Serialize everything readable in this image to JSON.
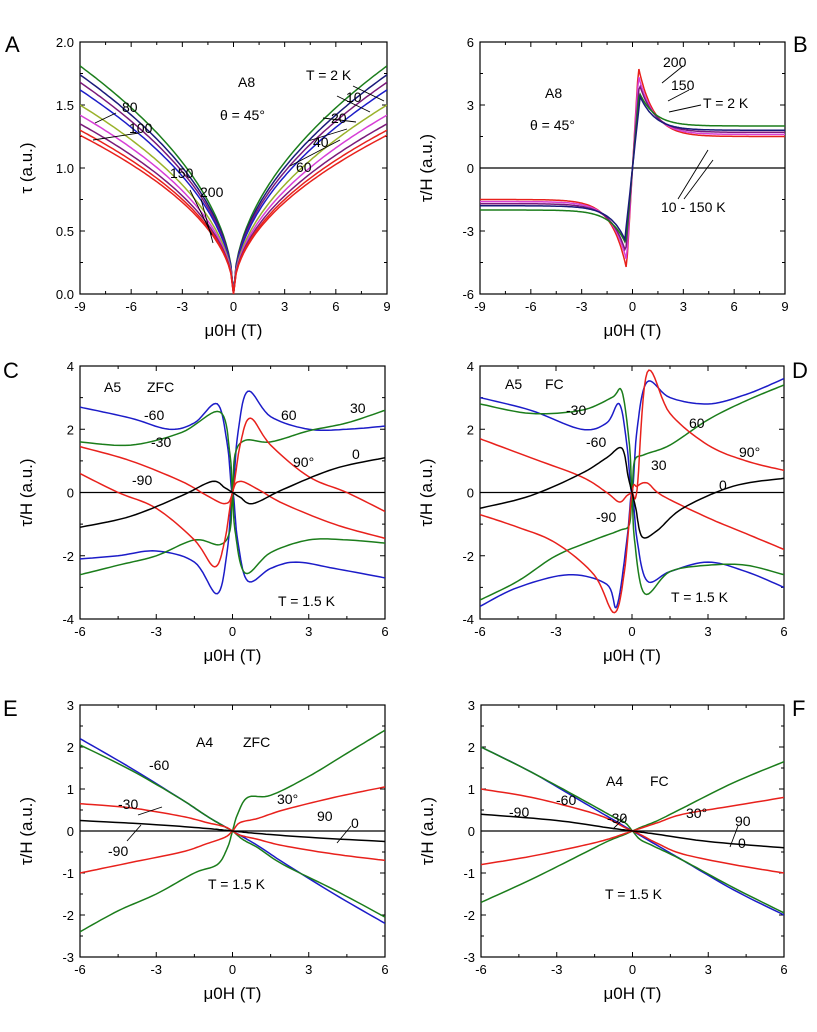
{
  "colors": {
    "black": "#000000",
    "red": "#e8211c",
    "green": "#1b7d1b",
    "blue": "#1c1cc8",
    "navy": "#1a1a7a",
    "purple": "#7b1a7a",
    "magenta": "#d73fd7",
    "olive": "#9ab22a"
  },
  "chart_data": [
    {
      "panel": "A",
      "type": "line",
      "xlabel": "μ0H (T)",
      "ylabel": "τ (a.u.)",
      "xlim": [
        -9,
        9
      ],
      "ylim": [
        0,
        2.0
      ],
      "xticks": [
        "-9",
        "-6",
        "-3",
        "0",
        "3",
        "6",
        "9"
      ],
      "yticks": [
        "0.0",
        "0.5",
        "1.0",
        "1.5",
        "2.0"
      ],
      "zero_line": false,
      "annotations": [
        "A8",
        "θ = 45°",
        "T = 2 K",
        "10",
        "20",
        "40",
        "60",
        "80",
        "100",
        "150",
        "200"
      ],
      "series": [
        {
          "label": "2 K",
          "color": "#1b7d1b",
          "fn": "sqrt",
          "amp": 1.81
        },
        {
          "label": "10 K",
          "color": "#1a1a7a",
          "fn": "sqrt",
          "amp": 1.74
        },
        {
          "label": "20 K",
          "color": "#7b1a7a",
          "fn": "sqrt",
          "amp": 1.68
        },
        {
          "label": "40 K",
          "color": "#1c1cc8",
          "fn": "sqrt",
          "amp": 1.62
        },
        {
          "label": "60 K",
          "color": "#9ab22a",
          "fn": "sqrt",
          "amp": 1.5
        },
        {
          "label": "80 K",
          "color": "#d73fd7",
          "fn": "sqrt",
          "amp": 1.42
        },
        {
          "label": "100 K",
          "color": "#7b1a7a",
          "fn": "sqrt",
          "amp": 1.35
        },
        {
          "label": "150 K",
          "color": "#e8211c",
          "fn": "sqrt",
          "amp": 1.3
        },
        {
          "label": "200 K",
          "color": "#e8211c",
          "fn": "sqrt",
          "amp": 1.26
        }
      ]
    },
    {
      "panel": "B",
      "type": "line",
      "xlabel": "μ0H (T)",
      "ylabel": "τ/H (a.u.)",
      "xlim": [
        -9,
        9
      ],
      "ylim": [
        -6,
        6
      ],
      "xticks": [
        "-9",
        "-6",
        "-3",
        "0",
        "3",
        "6",
        "9"
      ],
      "yticks": [
        "-6",
        "-3",
        "0",
        "3",
        "6"
      ],
      "zero_line": true,
      "annotations": [
        "A8",
        "θ = 45°",
        "200",
        "150",
        "T = 2 K",
        "10 - 150 K"
      ],
      "series": [
        {
          "label": "200 K",
          "color": "#e8211c",
          "fn": "peak",
          "peak": 4.8,
          "hpk": 0.35,
          "tail": 1.5
        },
        {
          "label": "150 K",
          "color": "#d73fd7",
          "fn": "peak",
          "peak": 4.4,
          "hpk": 0.35,
          "tail": 1.6
        },
        {
          "label": "100 K",
          "color": "#7b1a7a",
          "fn": "peak",
          "peak": 4.0,
          "hpk": 0.4,
          "tail": 1.7
        },
        {
          "label": "10 K",
          "color": "#1b7d1b",
          "fn": "peak",
          "peak": 3.6,
          "hpk": 0.4,
          "tail": 2.0
        },
        {
          "label": "2 K",
          "color": "#1a1a7a",
          "fn": "peak",
          "peak": 3.4,
          "hpk": 0.45,
          "tail": 1.8
        }
      ]
    },
    {
      "panel": "C",
      "type": "line",
      "xlabel": "μ0H (T)",
      "ylabel": "τ/H (a.u.)",
      "xlim": [
        -6,
        6
      ],
      "ylim": [
        -4,
        4
      ],
      "xticks": [
        "-6",
        "-3",
        "0",
        "3",
        "6"
      ],
      "yticks": [
        "-4",
        "-2",
        "0",
        "2",
        "4"
      ],
      "zero_line": true,
      "annotations": [
        "A5",
        "ZFC",
        "-60",
        "60",
        "30",
        "-30",
        "-90",
        "90°",
        "0",
        "T = 1.5 K"
      ],
      "series": [
        {
          "label": "60",
          "color": "#1c1cc8",
          "x": [
            -6,
            -4,
            -2.5,
            -1.5,
            -0.6,
            -0.2,
            0,
            0.2,
            0.6,
            1.5,
            3,
            4.5,
            6
          ],
          "y": [
            2.7,
            2.35,
            2.0,
            2.2,
            2.8,
            1.5,
            0,
            1.8,
            3.2,
            2.4,
            2.0,
            2.0,
            2.1
          ]
        },
        {
          "label": "-60",
          "color": "#1c1cc8",
          "x": [
            -6,
            -4.5,
            -3,
            -1.5,
            -0.6,
            -0.2,
            0,
            0.2,
            0.6,
            1.5,
            2.5,
            4,
            6
          ],
          "y": [
            -2.1,
            -2.0,
            -1.85,
            -2.2,
            -3.2,
            -1.8,
            0,
            -1.5,
            -2.8,
            -2.4,
            -2.2,
            -2.4,
            -2.7
          ]
        },
        {
          "label": "30",
          "color": "#1b7d1b",
          "x": [
            -6,
            -4,
            -2,
            -0.5,
            -0.1,
            0,
            0.1,
            0.5,
            1.5,
            3,
            4.5,
            6
          ],
          "y": [
            1.6,
            1.5,
            1.9,
            2.55,
            1.2,
            0,
            1.2,
            1.65,
            1.6,
            1.95,
            2.2,
            2.6
          ]
        },
        {
          "label": "-30",
          "color": "#1b7d1b",
          "x": [
            -6,
            -4.5,
            -3,
            -1.5,
            -0.5,
            -0.1,
            0,
            0.1,
            0.5,
            1.5,
            3,
            4.5,
            6
          ],
          "y": [
            -2.6,
            -2.3,
            -2.0,
            -1.5,
            -1.65,
            -1.2,
            0,
            -1.2,
            -2.55,
            -1.9,
            -1.5,
            -1.5,
            -1.6
          ]
        },
        {
          "label": "90",
          "color": "#e8211c",
          "x": [
            -6,
            -4,
            -2,
            -1,
            -0.3,
            0,
            0.3,
            0.7,
            1.5,
            3,
            4.5,
            6
          ],
          "y": [
            1.45,
            1.0,
            0.35,
            -0.1,
            -0.35,
            0,
            1.5,
            2.35,
            1.5,
            0.5,
            0.0,
            -0.6
          ]
        },
        {
          "label": "-90",
          "color": "#e8211c",
          "x": [
            -6,
            -4.5,
            -3,
            -1.5,
            -0.7,
            -0.3,
            0,
            0.3,
            1,
            2,
            4,
            6
          ],
          "y": [
            0.6,
            0.0,
            -0.5,
            -1.5,
            -2.35,
            -1.5,
            0,
            0.35,
            0.1,
            -0.35,
            -1.0,
            -1.45
          ]
        },
        {
          "label": "0",
          "color": "#000000",
          "x": [
            -6,
            -4,
            -2,
            -0.8,
            -0.3,
            0,
            0.3,
            0.8,
            2,
            4,
            6
          ],
          "y": [
            -1.1,
            -0.75,
            -0.1,
            0.35,
            0.15,
            0,
            -0.15,
            -0.35,
            0.1,
            0.75,
            1.1
          ]
        }
      ]
    },
    {
      "panel": "D",
      "type": "line",
      "xlabel": "μ0H (T)",
      "ylabel": "τ/H (a.u.)",
      "xlim": [
        -6,
        6
      ],
      "ylim": [
        -4,
        4
      ],
      "xticks": [
        "-6",
        "-3",
        "0",
        "3",
        "6"
      ],
      "yticks": [
        "-4",
        "-2",
        "0",
        "2",
        "4"
      ],
      "zero_line": true,
      "annotations": [
        "A5",
        "FC",
        "-30",
        "-60",
        "60",
        "30",
        "90°",
        "0",
        "-90",
        "T = 1.5 K"
      ],
      "series": [
        {
          "label": "60",
          "color": "#1c1cc8",
          "x": [
            -6,
            -4,
            -2,
            -1,
            -0.5,
            -0.2,
            0,
            0.2,
            0.6,
            1.5,
            3,
            4.5,
            6
          ],
          "y": [
            3.0,
            2.6,
            2.0,
            2.2,
            2.8,
            1.5,
            0,
            2.0,
            3.5,
            3.0,
            2.8,
            3.1,
            3.6
          ]
        },
        {
          "label": "-60",
          "color": "#1c1cc8",
          "x": [
            -6,
            -4.5,
            -2.5,
            -1,
            -0.6,
            -0.2,
            0,
            0.2,
            0.6,
            1.5,
            3,
            4.5,
            6
          ],
          "y": [
            -3.6,
            -3.0,
            -2.6,
            -2.9,
            -3.6,
            -1.5,
            0,
            -1.5,
            -2.8,
            -2.5,
            -2.2,
            -2.5,
            -3.0
          ]
        },
        {
          "label": "30",
          "color": "#1b7d1b",
          "x": [
            -6,
            -4,
            -2,
            -0.8,
            -0.4,
            -0.1,
            0,
            0.1,
            0.5,
            1.5,
            3,
            4.5,
            6
          ],
          "y": [
            2.8,
            2.5,
            2.6,
            3.0,
            3.2,
            1.5,
            0,
            1.0,
            1.2,
            1.5,
            2.3,
            2.9,
            3.4
          ]
        },
        {
          "label": "-30",
          "color": "#1b7d1b",
          "x": [
            -6,
            -4.5,
            -3,
            -1.5,
            -0.5,
            -0.1,
            0,
            0.1,
            0.5,
            1.5,
            3,
            4.5,
            6
          ],
          "y": [
            -3.4,
            -2.8,
            -2.0,
            -1.5,
            -1.2,
            -1.0,
            0,
            -1.5,
            -3.2,
            -2.5,
            -2.3,
            -2.3,
            -2.6
          ]
        },
        {
          "label": "90",
          "color": "#e8211c",
          "x": [
            -6,
            -4,
            -2,
            -1,
            -0.5,
            -0.2,
            0,
            0.2,
            0.6,
            1.5,
            3,
            4.5,
            6
          ],
          "y": [
            1.7,
            1.1,
            0.5,
            0.0,
            -0.3,
            -0.1,
            0,
            0.1,
            3.8,
            2.5,
            1.5,
            1.0,
            0.7
          ]
        },
        {
          "label": "-90",
          "color": "#e8211c",
          "x": [
            -6,
            -4.5,
            -3,
            -1.5,
            -0.7,
            -0.3,
            0,
            0.2,
            0.6,
            1.2,
            3,
            4.5,
            6
          ],
          "y": [
            -0.7,
            -1.1,
            -1.6,
            -2.6,
            -3.8,
            -2.5,
            0,
            0.2,
            0.3,
            -0.1,
            -0.8,
            -1.3,
            -1.8
          ]
        },
        {
          "label": "0",
          "color": "#000000",
          "x": [
            -6,
            -4,
            -2,
            -1,
            -0.4,
            -0.15,
            0,
            0.15,
            0.4,
            1,
            2,
            4,
            6
          ],
          "y": [
            -0.5,
            -0.1,
            0.6,
            1.1,
            1.4,
            0.5,
            0,
            -0.5,
            -1.4,
            -1.2,
            -0.5,
            0.2,
            0.45
          ]
        }
      ]
    },
    {
      "panel": "E",
      "type": "line",
      "xlabel": "μ0H (T)",
      "ylabel": "τ/H (a.u.)",
      "xlim": [
        -6,
        6
      ],
      "ylim": [
        -3,
        3
      ],
      "xticks": [
        "-6",
        "-3",
        "0",
        "3",
        "6"
      ],
      "yticks": [
        "-3",
        "-2",
        "-1",
        "0",
        "1",
        "2",
        "3"
      ],
      "zero_line": true,
      "annotations": [
        "A4",
        "ZFC",
        "-60",
        "-30",
        "-90",
        "30°",
        "90",
        "0",
        "T = 1.5 K"
      ],
      "series": [
        {
          "label": "-60",
          "color": "#1c1cc8",
          "x": [
            -6,
            -4,
            -2,
            -1,
            0,
            1,
            2,
            4,
            6
          ],
          "y": [
            2.2,
            1.5,
            0.75,
            0.35,
            0,
            -0.35,
            -0.75,
            -1.5,
            -2.2
          ]
        },
        {
          "label": "-30",
          "color": "#1b7d1b",
          "x": [
            -6,
            -4,
            -2,
            -1,
            -0.3,
            0,
            0.4,
            1,
            2,
            4,
            6
          ],
          "y": [
            2.05,
            1.45,
            0.75,
            0.35,
            0.1,
            0,
            -0.2,
            -0.4,
            -0.8,
            -1.4,
            -2.05
          ]
        },
        {
          "label": "30",
          "color": "#1b7d1b",
          "x": [
            -6,
            -4.5,
            -3,
            -1.5,
            -0.6,
            -0.2,
            0,
            0.2,
            0.6,
            1.5,
            3,
            4.5,
            6
          ],
          "y": [
            -2.4,
            -1.9,
            -1.5,
            -1.0,
            -0.8,
            -0.4,
            0,
            0.4,
            0.8,
            0.85,
            1.3,
            1.85,
            2.4
          ]
        },
        {
          "label": "90",
          "color": "#e8211c",
          "x": [
            -6,
            -4,
            -2,
            -1,
            -0.3,
            0,
            0.3,
            1,
            2,
            4,
            6
          ],
          "y": [
            -1.0,
            -0.75,
            -0.5,
            -0.3,
            -0.15,
            0,
            0.2,
            0.3,
            0.5,
            0.8,
            1.05
          ]
        },
        {
          "label": "-90",
          "color": "#e8211c",
          "x": [
            -6,
            -4,
            -2,
            -1,
            -0.3,
            0,
            0.3,
            1,
            2,
            4,
            6
          ],
          "y": [
            0.65,
            0.55,
            0.35,
            0.2,
            0.1,
            0,
            -0.1,
            -0.2,
            -0.35,
            -0.55,
            -0.7
          ]
        },
        {
          "label": "0",
          "color": "#000000",
          "x": [
            -6,
            -3,
            -1,
            0,
            1,
            3,
            6
          ],
          "y": [
            0.25,
            0.15,
            0.06,
            0,
            -0.06,
            -0.15,
            -0.25
          ]
        }
      ]
    },
    {
      "panel": "F",
      "type": "line",
      "xlabel": "μ0H (T)",
      "ylabel": "τ/H (a.u.)",
      "xlim": [
        -6,
        6
      ],
      "ylim": [
        -3,
        3
      ],
      "xticks": [
        "-6",
        "-3",
        "0",
        "3",
        "6"
      ],
      "yticks": [
        "-3",
        "-2",
        "-1",
        "0",
        "1",
        "2",
        "3"
      ],
      "zero_line": true,
      "annotations": [
        "A4",
        "FC",
        "-90",
        "-60",
        "-30",
        "30°",
        "90",
        "0",
        "T = 1.5 K"
      ],
      "series": [
        {
          "label": "-60",
          "color": "#1c1cc8",
          "x": [
            -6,
            -4,
            -2,
            -1,
            0,
            1,
            2,
            4,
            6
          ],
          "y": [
            2.0,
            1.4,
            0.7,
            0.35,
            0,
            -0.35,
            -0.7,
            -1.4,
            -2.0
          ]
        },
        {
          "label": "-30",
          "color": "#1b7d1b",
          "x": [
            -6,
            -4,
            -2,
            -0.8,
            -0.3,
            0,
            0.3,
            0.8,
            2,
            4,
            6
          ],
          "y": [
            2.0,
            1.4,
            0.75,
            0.35,
            0.2,
            0,
            -0.2,
            -0.35,
            -0.7,
            -1.35,
            -1.95
          ]
        },
        {
          "label": "30",
          "color": "#1b7d1b",
          "x": [
            -6,
            -4,
            -2,
            -1,
            -0.3,
            0,
            0.3,
            1,
            2,
            4,
            6
          ],
          "y": [
            -1.7,
            -1.15,
            -0.55,
            -0.25,
            -0.08,
            0,
            0.08,
            0.25,
            0.55,
            1.15,
            1.65
          ]
        },
        {
          "label": "90",
          "color": "#e8211c",
          "x": [
            -6,
            -4,
            -2,
            -1,
            -0.3,
            0,
            0.3,
            1,
            2,
            4,
            6
          ],
          "y": [
            -0.8,
            -0.6,
            -0.35,
            -0.2,
            -0.06,
            0,
            0.06,
            0.2,
            0.4,
            0.6,
            0.8
          ]
        },
        {
          "label": "-90",
          "color": "#e8211c",
          "x": [
            -6,
            -4,
            -2,
            -1,
            -0.3,
            0,
            0.3,
            1,
            2,
            4,
            6
          ],
          "y": [
            1.0,
            0.8,
            0.5,
            0.3,
            0.08,
            0,
            -0.08,
            -0.3,
            -0.55,
            -0.8,
            -1.0
          ]
        },
        {
          "label": "0",
          "color": "#000000",
          "x": [
            -6,
            -3,
            -1,
            0,
            1,
            3,
            6
          ],
          "y": [
            0.4,
            0.25,
            0.08,
            0,
            -0.08,
            -0.25,
            -0.4
          ]
        }
      ]
    }
  ]
}
